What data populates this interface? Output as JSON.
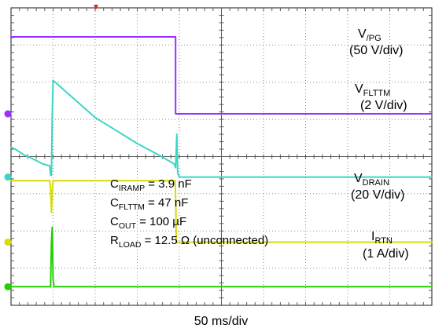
{
  "chart_data": {
    "type": "line",
    "title": "",
    "x_axis": {
      "divisions": 10,
      "range": [
        0,
        500
      ],
      "unit": "ms",
      "label": "50 ms/div"
    },
    "y_axis": {
      "divisions": 8,
      "range": [
        -4,
        4
      ]
    },
    "grid": true,
    "series": [
      {
        "key": "vpg",
        "name_main": "V",
        "name_sub": "/PG",
        "scale": "(50 V/div)",
        "color": "#9b30ff",
        "ground_div": 1.15,
        "points": [
          [
            0,
            3.22
          ],
          [
            195.5,
            3.22
          ],
          [
            195.5,
            1.15
          ],
          [
            500,
            1.15
          ]
        ]
      },
      {
        "key": "vflttm",
        "name_main": "V",
        "name_sub": "FLTTM",
        "scale": "(2 V/div)",
        "color": "#3ad6c4",
        "ground_div": -0.55,
        "points": [
          [
            0,
            0.25
          ],
          [
            5,
            0.2
          ],
          [
            15,
            0.05
          ],
          [
            25,
            -0.05
          ],
          [
            38,
            -0.2
          ],
          [
            46,
            -0.25
          ],
          [
            47,
            -0.5
          ],
          [
            48,
            -0.5
          ],
          [
            49,
            1.1
          ],
          [
            50,
            2.05
          ],
          [
            75,
            1.55
          ],
          [
            100,
            1.05
          ],
          [
            125,
            0.7
          ],
          [
            150,
            0.35
          ],
          [
            175,
            0.05
          ],
          [
            194,
            -0.2
          ],
          [
            195.5,
            -0.3
          ],
          [
            196.5,
            0.3
          ],
          [
            197,
            0.6
          ],
          [
            197.5,
            0.1
          ],
          [
            198,
            -0.45
          ],
          [
            200,
            -0.55
          ],
          [
            500,
            -0.55
          ]
        ]
      },
      {
        "key": "vdrain",
        "name_main": "V",
        "name_sub": "DRAIN",
        "scale": "(20 V/div)",
        "color": "#d8dc00",
        "ground_div": -2.3,
        "points": [
          [
            0,
            -0.65
          ],
          [
            46,
            -0.65
          ],
          [
            47,
            -0.9
          ],
          [
            48,
            -1.5
          ],
          [
            49,
            -0.9
          ],
          [
            50,
            -0.65
          ],
          [
            195,
            -0.65
          ],
          [
            195.8,
            -1.3
          ],
          [
            196.4,
            -2.3
          ],
          [
            500,
            -2.3
          ]
        ]
      },
      {
        "key": "irtn",
        "name_main": "I",
        "name_sub": "RTN",
        "scale": "(1 A/div)",
        "color": "#22d000",
        "ground_div": -3.5,
        "points": [
          [
            0,
            -3.5
          ],
          [
            47,
            -3.5
          ],
          [
            48,
            -2.3
          ],
          [
            49,
            -1.9
          ],
          [
            50,
            -3.3
          ],
          [
            51,
            -3.5
          ],
          [
            500,
            -3.5
          ]
        ]
      }
    ],
    "annotations": [
      {
        "main": "C",
        "sub": "IRAMP",
        "rest": " = 3.9 nF"
      },
      {
        "main": "C",
        "sub": "FLTTM",
        "rest": " = 47 nF"
      },
      {
        "main": "C",
        "sub": "OUT",
        "rest": " = 100 µF"
      },
      {
        "main": "R",
        "sub": "LOAD",
        "rest": " = 12.5 Ω (unconnected)"
      }
    ],
    "trigger_time_ms": 47
  }
}
